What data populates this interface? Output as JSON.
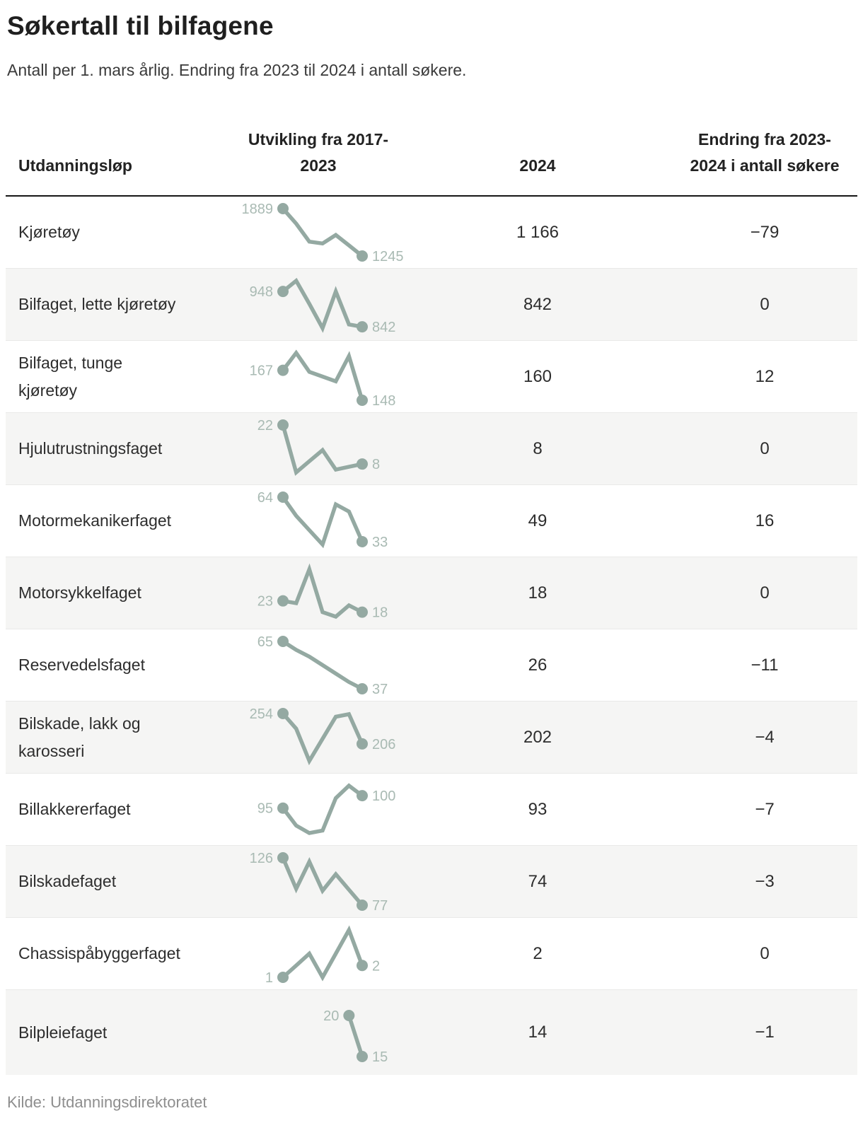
{
  "title": "Søkertall til bilfagene",
  "subtitle": "Antall per 1. mars årlig. Endring fra 2023 til 2024 i antall søkere.",
  "source": "Kilde: Utdanningsdirektoratet",
  "columns": {
    "course": "Utdanningsløp",
    "trend": "Utvikling fra 2017-2023",
    "year": "2024",
    "change": "Endring fra 2023-2024 i antall søkere"
  },
  "colors": {
    "sparkline": "#94a9a2",
    "sparkline_label": "#a9bab3",
    "row_alt": "#f5f5f4",
    "text": "#2d2d2d",
    "muted": "#8e8e8e",
    "header_rule": "#161616"
  },
  "chart_data": {
    "type": "table",
    "sparkline_type": "line",
    "x_years": [
      2017,
      2018,
      2019,
      2020,
      2021,
      2022,
      2023
    ],
    "column_headers": [
      "Utdanningsløp",
      "Utvikling fra 2017-2023",
      "2024",
      "Endring fra 2023-2024 i antall søkere"
    ],
    "rows": [
      {
        "label": "Kjøretøy",
        "label_lines": [
          "Kjøretøy"
        ],
        "series": [
          1889,
          1685,
          1440,
          1415,
          1530,
          1390,
          1245
        ],
        "start_label": "1889",
        "end_label": "1245",
        "value_2024": "1 166",
        "change": "−79"
      },
      {
        "label": "Bilfaget, lette kjøretøy",
        "label_lines": [
          "Bilfaget, lette kjøretøy"
        ],
        "series": [
          948,
          980,
          911,
          838,
          948,
          849,
          842
        ],
        "start_label": "948",
        "end_label": "842",
        "value_2024": "842",
        "change": "0"
      },
      {
        "label": "Bilfaget, tunge kjøretøy",
        "label_lines": [
          "Bilfaget, tunge",
          "kjøretøy"
        ],
        "series": [
          167,
          178,
          166,
          163,
          160,
          176,
          148
        ],
        "start_label": "167",
        "end_label": "148",
        "value_2024": "160",
        "change": "12"
      },
      {
        "label": "Hjulutrustningsfaget",
        "label_lines": [
          "Hjulutrustningsfaget"
        ],
        "series": [
          22,
          5,
          9,
          13,
          6,
          7,
          8
        ],
        "start_label": "22",
        "end_label": "8",
        "value_2024": "8",
        "change": "0"
      },
      {
        "label": "Motormekanikerfaget",
        "label_lines": [
          "Motormekanikerfaget"
        ],
        "series": [
          64,
          51,
          41,
          31,
          59,
          54,
          33
        ],
        "start_label": "64",
        "end_label": "33",
        "value_2024": "49",
        "change": "16"
      },
      {
        "label": "Motorsykkelfaget",
        "label_lines": [
          "Motorsykkelfaget"
        ],
        "series": [
          23,
          22,
          37,
          18,
          16,
          21,
          18
        ],
        "start_label": "23",
        "end_label": "18",
        "value_2024": "18",
        "change": "0"
      },
      {
        "label": "Reservedelsfaget",
        "label_lines": [
          "Reservedelsfaget"
        ],
        "series": [
          65,
          60,
          56,
          51,
          46,
          41,
          37
        ],
        "start_label": "65",
        "end_label": "37",
        "value_2024": "26",
        "change": "−11"
      },
      {
        "label": "Bilskade, lakk og karosseri",
        "label_lines": [
          "Bilskade, lakk og",
          "karosseri"
        ],
        "series": [
          254,
          230,
          179,
          214,
          249,
          253,
          206
        ],
        "start_label": "254",
        "end_label": "206",
        "value_2024": "202",
        "change": "−4"
      },
      {
        "label": "Billakkererfaget",
        "label_lines": [
          "Billakkererfaget"
        ],
        "series": [
          95,
          88,
          85,
          86,
          99,
          104,
          100
        ],
        "start_label": "95",
        "end_label": "100",
        "value_2024": "93",
        "change": "−7"
      },
      {
        "label": "Bilskadefaget",
        "label_lines": [
          "Bilskadefaget"
        ],
        "series": [
          126,
          94,
          122,
          92,
          109,
          93,
          77
        ],
        "start_label": "126",
        "end_label": "77",
        "value_2024": "74",
        "change": "−3"
      },
      {
        "label": "Chassispåbyggerfaget",
        "label_lines": [
          "Chassispåbyggerfaget"
        ],
        "series": [
          1,
          2,
          3,
          1,
          3,
          5,
          2
        ],
        "start_label": "1",
        "end_label": "2",
        "value_2024": "2",
        "change": "0"
      },
      {
        "label": "Bilpleiefaget",
        "label_lines": [
          "Bilpleiefaget"
        ],
        "series": [
          null,
          null,
          null,
          null,
          null,
          20,
          15
        ],
        "start_label": "20",
        "end_label": "15",
        "value_2024": "14",
        "change": "−1"
      }
    ]
  }
}
